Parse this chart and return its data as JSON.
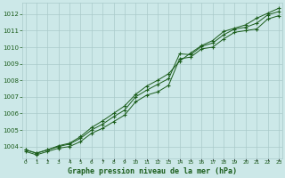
{
  "title": "Graphe pression niveau de la mer (hPa)",
  "background_color": "#cce8e8",
  "plot_bg_color": "#cce8e8",
  "grid_color": "#aacaca",
  "line_color": "#1a5c1a",
  "marker_color": "#1a5c1a",
  "x_labels": [
    "0",
    "1",
    "2",
    "3",
    "4",
    "5",
    "6",
    "7",
    "8",
    "9",
    "10",
    "11",
    "12",
    "13",
    "14",
    "15",
    "16",
    "17",
    "18",
    "19",
    "20",
    "21",
    "22",
    "23"
  ],
  "ylim": [
    1003.3,
    1012.7
  ],
  "yticks": [
    1004,
    1005,
    1006,
    1007,
    1008,
    1009,
    1010,
    1011,
    1012
  ],
  "hours": [
    0,
    1,
    2,
    3,
    4,
    5,
    6,
    7,
    8,
    9,
    10,
    11,
    12,
    13,
    14,
    15,
    16,
    17,
    18,
    19,
    20,
    21,
    22,
    23
  ],
  "line_low": [
    1003.7,
    1003.5,
    1003.7,
    1003.9,
    1004.0,
    1004.3,
    1004.8,
    1005.1,
    1005.5,
    1005.9,
    1006.7,
    1007.1,
    1007.3,
    1007.7,
    1009.3,
    1009.4,
    1009.9,
    1010.0,
    1010.5,
    1010.9,
    1011.0,
    1011.1,
    1011.7,
    1011.9
  ],
  "line_mid": [
    1003.8,
    1003.6,
    1003.8,
    1004.0,
    1004.15,
    1004.5,
    1005.0,
    1005.35,
    1005.8,
    1006.2,
    1007.0,
    1007.4,
    1007.75,
    1008.1,
    1009.6,
    1009.55,
    1010.05,
    1010.25,
    1010.75,
    1011.1,
    1011.2,
    1011.45,
    1011.95,
    1012.15
  ],
  "line_high": [
    1003.8,
    1003.6,
    1003.8,
    1004.05,
    1004.2,
    1004.6,
    1005.15,
    1005.55,
    1006.0,
    1006.45,
    1007.15,
    1007.65,
    1008.0,
    1008.4,
    1009.15,
    1009.65,
    1010.1,
    1010.4,
    1010.95,
    1011.15,
    1011.35,
    1011.75,
    1012.05,
    1012.35
  ]
}
